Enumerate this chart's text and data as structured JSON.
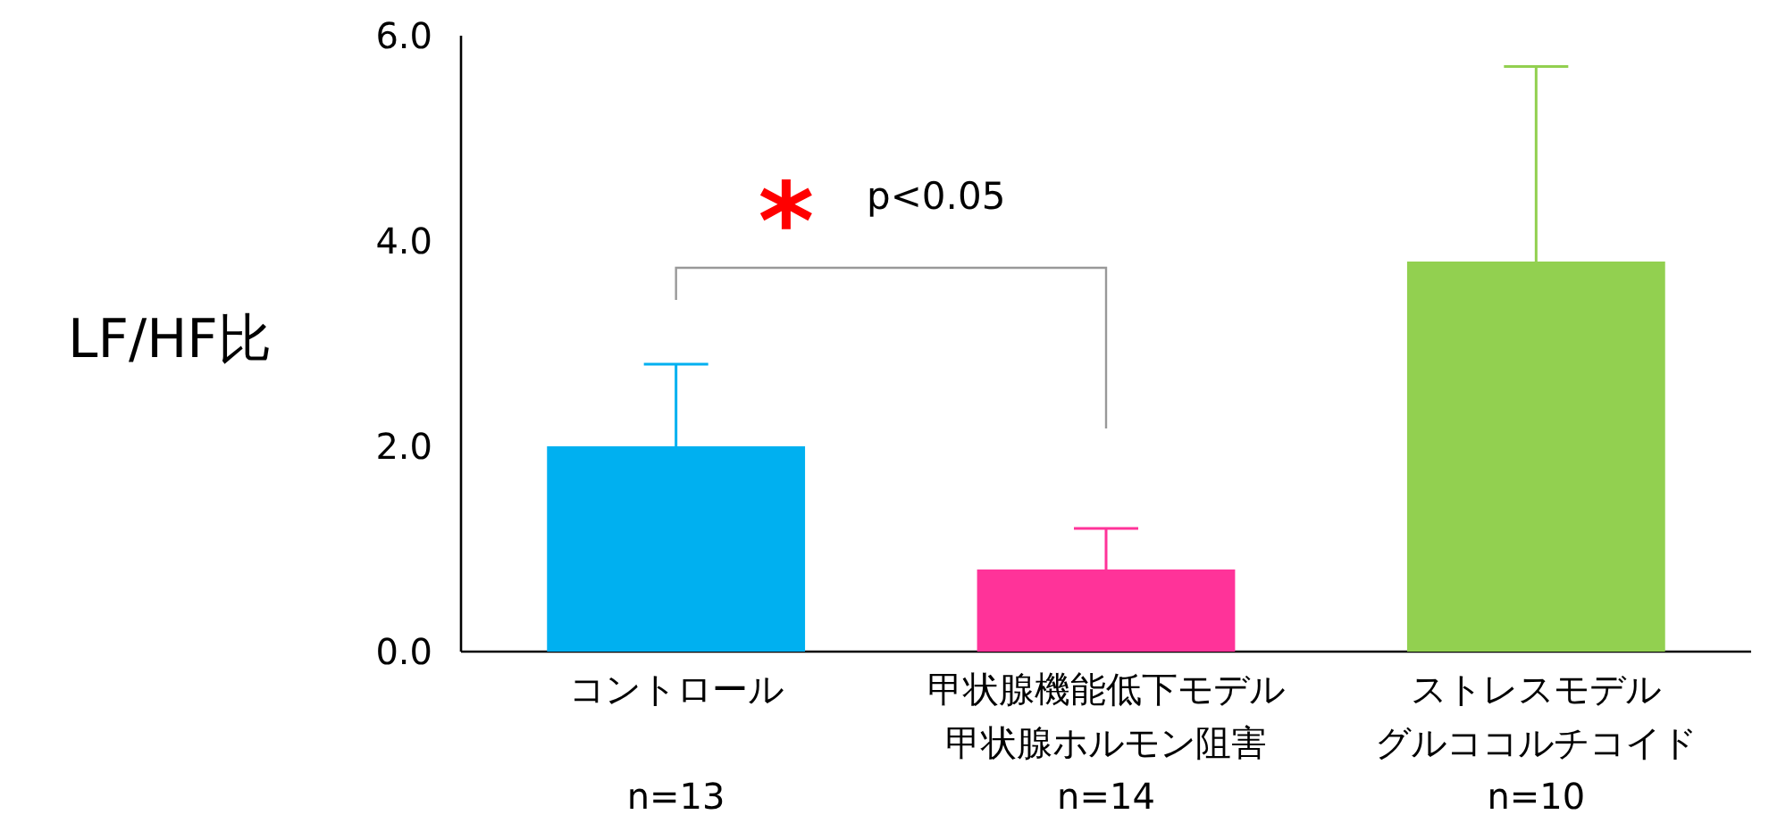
{
  "chart_data": {
    "type": "bar",
    "ylabel": "LF/HF比",
    "categories": [
      "コントロール",
      "甲状腺機能低下モデル",
      "ストレスモデル"
    ],
    "values": [
      2.0,
      0.8,
      3.8
    ],
    "colors": [
      "#00b0f0",
      "#ff3399",
      "#92d050"
    ],
    "errors": [
      [
        2.0,
        2.8
      ],
      [
        0.8,
        1.2
      ],
      [
        3.8,
        5.7
      ]
    ],
    "ylim": [
      0,
      6
    ],
    "yticks": [
      {
        "value": 0,
        "label": "0.0"
      },
      {
        "value": 2,
        "label": "2.0"
      },
      {
        "value": 4,
        "label": "4.0"
      },
      {
        "value": 6,
        "label": "6.0"
      }
    ],
    "annotations": [
      "*",
      "p<0.05",
      "n=13",
      "甲状腺ホルモン阻害",
      "n=14",
      "グルココルチコイド",
      "n=10"
    ],
    "grid": false
  }
}
